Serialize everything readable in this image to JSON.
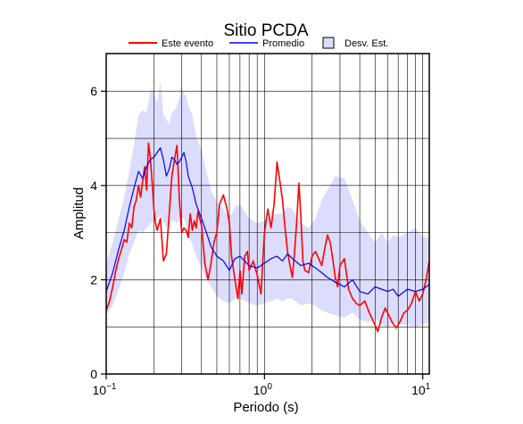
{
  "chart_data": {
    "type": "line",
    "title": "Sitio PCDA",
    "xlabel": "Periodo (s)",
    "ylabel": "Amplitud",
    "x_scale": "log",
    "xlim": [
      0.1,
      11
    ],
    "ylim": [
      0,
      6.8
    ],
    "x_ticks": [
      {
        "value": 0.1,
        "base": "10",
        "exp": "−1"
      },
      {
        "value": 1,
        "base": "10",
        "exp": "0"
      },
      {
        "value": 10,
        "base": "10",
        "exp": "1"
      }
    ],
    "y_ticks": [
      {
        "value": 0,
        "label": "0"
      },
      {
        "value": 2,
        "label": "2"
      },
      {
        "value": 4,
        "label": "4"
      },
      {
        "value": 6,
        "label": "6"
      }
    ],
    "grid": true,
    "legend_position": "top",
    "legend": {
      "event_label": "Este evento",
      "mean_label": "Promedio",
      "std_label": "Desv. Est."
    },
    "colors": {
      "event": "#ff0000",
      "mean": "#0000ff",
      "std_fill": "#dcdcfc",
      "grid": "#000000"
    },
    "series": [
      {
        "name": "Este evento",
        "color": "#ff0000",
        "x": [
          0.1,
          0.105,
          0.11,
          0.115,
          0.12,
          0.125,
          0.13,
          0.135,
          0.14,
          0.145,
          0.15,
          0.155,
          0.16,
          0.165,
          0.17,
          0.175,
          0.18,
          0.185,
          0.19,
          0.195,
          0.2,
          0.205,
          0.21,
          0.22,
          0.23,
          0.24,
          0.25,
          0.26,
          0.27,
          0.28,
          0.29,
          0.3,
          0.31,
          0.32,
          0.33,
          0.34,
          0.35,
          0.36,
          0.37,
          0.38,
          0.4,
          0.42,
          0.44,
          0.46,
          0.48,
          0.5,
          0.52,
          0.55,
          0.58,
          0.6,
          0.62,
          0.65,
          0.68,
          0.7,
          0.72,
          0.75,
          0.78,
          0.8,
          0.85,
          0.9,
          0.95,
          1.0,
          1.05,
          1.1,
          1.15,
          1.2,
          1.25,
          1.3,
          1.35,
          1.4,
          1.45,
          1.5,
          1.55,
          1.6,
          1.65,
          1.7,
          1.75,
          1.8,
          1.9,
          2.0,
          2.1,
          2.2,
          2.3,
          2.4,
          2.5,
          2.6,
          2.7,
          2.8,
          2.9,
          3.0,
          3.2,
          3.4,
          3.6,
          3.8,
          4.0,
          4.3,
          4.6,
          4.9,
          5.2,
          5.5,
          5.8,
          6.1,
          6.4,
          6.8,
          7.2,
          7.6,
          8.0,
          8.5,
          9.0,
          9.5,
          10.0,
          10.5,
          11.0
        ],
        "values": [
          1.35,
          1.55,
          1.85,
          2.2,
          2.45,
          2.65,
          2.85,
          2.8,
          3.2,
          3.1,
          3.55,
          3.7,
          4.0,
          3.75,
          4.1,
          4.4,
          3.9,
          4.9,
          4.6,
          4.1,
          3.5,
          3.2,
          3.05,
          3.3,
          2.4,
          2.55,
          3.4,
          4.2,
          4.55,
          4.85,
          3.7,
          3.0,
          3.1,
          3.05,
          2.9,
          3.4,
          3.05,
          3.25,
          3.1,
          3.45,
          3.15,
          2.35,
          2.0,
          2.35,
          2.8,
          3.0,
          3.6,
          3.8,
          3.5,
          3.2,
          2.5,
          2.0,
          1.6,
          2.2,
          1.7,
          2.5,
          2.6,
          2.2,
          2.4,
          2.1,
          1.7,
          3.0,
          3.5,
          3.1,
          3.6,
          4.5,
          4.1,
          3.7,
          3.1,
          2.6,
          2.3,
          2.05,
          2.6,
          3.25,
          4.05,
          3.3,
          2.4,
          2.2,
          2.15,
          2.5,
          2.6,
          2.45,
          2.3,
          2.65,
          2.95,
          2.8,
          2.45,
          2.05,
          1.85,
          2.3,
          2.45,
          1.8,
          1.6,
          1.5,
          1.45,
          1.55,
          1.3,
          1.1,
          0.9,
          1.2,
          1.4,
          1.25,
          1.1,
          0.98,
          1.12,
          1.3,
          1.35,
          1.5,
          1.75,
          1.55,
          1.7,
          2.0,
          2.4
        ]
      },
      {
        "name": "Promedio",
        "color": "#0000ff",
        "x": [
          0.1,
          0.11,
          0.12,
          0.13,
          0.14,
          0.15,
          0.16,
          0.17,
          0.18,
          0.19,
          0.2,
          0.21,
          0.22,
          0.23,
          0.24,
          0.25,
          0.26,
          0.27,
          0.28,
          0.29,
          0.3,
          0.31,
          0.32,
          0.33,
          0.35,
          0.37,
          0.4,
          0.43,
          0.46,
          0.5,
          0.55,
          0.6,
          0.65,
          0.7,
          0.8,
          0.9,
          1.0,
          1.1,
          1.2,
          1.3,
          1.4,
          1.5,
          1.7,
          1.9,
          2.1,
          2.3,
          2.5,
          2.8,
          3.2,
          3.6,
          4.0,
          4.5,
          5.0,
          5.5,
          6.0,
          6.5,
          7.0,
          8.0,
          9.0,
          10.0,
          11.0
        ],
        "values": [
          1.75,
          2.15,
          2.65,
          3.05,
          3.55,
          3.95,
          4.3,
          4.15,
          4.4,
          4.55,
          4.6,
          4.7,
          4.8,
          4.55,
          4.2,
          4.35,
          4.6,
          4.55,
          4.45,
          4.5,
          4.6,
          4.7,
          4.5,
          4.2,
          3.95,
          3.6,
          3.3,
          3.0,
          2.7,
          2.5,
          2.4,
          2.2,
          2.45,
          2.5,
          2.3,
          2.25,
          2.35,
          2.45,
          2.5,
          2.4,
          2.55,
          2.45,
          2.3,
          2.35,
          2.25,
          2.15,
          2.05,
          1.95,
          1.85,
          2.0,
          1.75,
          1.7,
          1.85,
          1.8,
          1.75,
          1.8,
          1.65,
          1.8,
          1.75,
          1.8,
          1.9
        ]
      }
    ],
    "std_band": {
      "name": "Desv. Est.",
      "x": [
        0.1,
        0.11,
        0.12,
        0.13,
        0.14,
        0.15,
        0.16,
        0.17,
        0.18,
        0.19,
        0.2,
        0.21,
        0.22,
        0.23,
        0.24,
        0.25,
        0.26,
        0.27,
        0.28,
        0.29,
        0.3,
        0.31,
        0.32,
        0.33,
        0.35,
        0.37,
        0.4,
        0.43,
        0.46,
        0.5,
        0.55,
        0.6,
        0.65,
        0.7,
        0.8,
        0.9,
        1.0,
        1.1,
        1.2,
        1.3,
        1.4,
        1.5,
        1.7,
        1.9,
        2.1,
        2.3,
        2.5,
        2.8,
        3.2,
        3.6,
        4.0,
        4.5,
        5.0,
        5.5,
        6.0,
        6.5,
        7.0,
        8.0,
        9.0,
        10.0,
        11.0
      ],
      "upper": [
        2.35,
        2.8,
        3.3,
        3.75,
        4.3,
        4.9,
        5.5,
        5.6,
        5.55,
        6.0,
        6.0,
        5.75,
        6.2,
        5.5,
        5.4,
        5.3,
        5.55,
        5.6,
        5.7,
        5.85,
        6.1,
        5.95,
        5.9,
        5.7,
        5.5,
        5.05,
        4.75,
        4.3,
        3.9,
        3.65,
        3.5,
        3.3,
        3.55,
        3.6,
        3.3,
        3.2,
        3.25,
        3.35,
        3.4,
        3.4,
        3.55,
        3.5,
        3.2,
        3.1,
        3.3,
        3.7,
        3.9,
        4.2,
        4.15,
        3.7,
        3.25,
        3.0,
        2.8,
        3.0,
        2.8,
        2.95,
        2.9,
        3.0,
        3.1,
        2.9,
        2.9
      ],
      "lower": [
        1.25,
        1.45,
        1.8,
        2.15,
        2.55,
        2.8,
        3.05,
        3.0,
        3.1,
        3.2,
        3.25,
        3.3,
        3.35,
        3.25,
        3.1,
        3.15,
        3.25,
        3.25,
        3.2,
        3.25,
        3.3,
        3.3,
        3.15,
        2.95,
        2.75,
        2.5,
        2.25,
        2.0,
        1.85,
        1.65,
        1.55,
        1.5,
        1.6,
        1.6,
        1.5,
        1.45,
        1.5,
        1.55,
        1.6,
        1.55,
        1.6,
        1.6,
        1.45,
        1.5,
        1.45,
        1.35,
        1.3,
        1.25,
        1.2,
        1.3,
        1.15,
        1.1,
        1.15,
        1.05,
        1.0,
        1.1,
        1.05,
        1.05,
        1.0,
        1.05,
        1.1
      ]
    }
  }
}
